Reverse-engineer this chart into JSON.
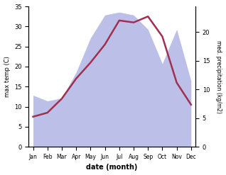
{
  "months": [
    "Jan",
    "Feb",
    "Mar",
    "Apr",
    "May",
    "Jun",
    "Jul",
    "Aug",
    "Sep",
    "Oct",
    "Nov",
    "Dec"
  ],
  "temp": [
    7.5,
    8.5,
    12.0,
    17.0,
    21.0,
    25.5,
    31.5,
    31.0,
    32.5,
    27.5,
    16.0,
    10.5
  ],
  "precip": [
    9.0,
    8.0,
    8.5,
    13.0,
    19.0,
    23.0,
    23.5,
    23.0,
    20.5,
    14.5,
    20.5,
    11.5
  ],
  "temp_color": "#a03050",
  "precip_fill_color": "#bcc0e8",
  "ylim_temp": [
    0,
    35
  ],
  "ylim_precip": [
    0,
    24.5
  ],
  "ylabel_left": "max temp (C)",
  "ylabel_right": "med. precipitation (kg/m2)",
  "xlabel": "date (month)",
  "bg_color": "#ffffff",
  "yticks_left": [
    0,
    5,
    10,
    15,
    20,
    25,
    30,
    35
  ],
  "yticks_right": [
    0,
    5,
    10,
    15,
    20
  ],
  "temp_lw": 1.8
}
